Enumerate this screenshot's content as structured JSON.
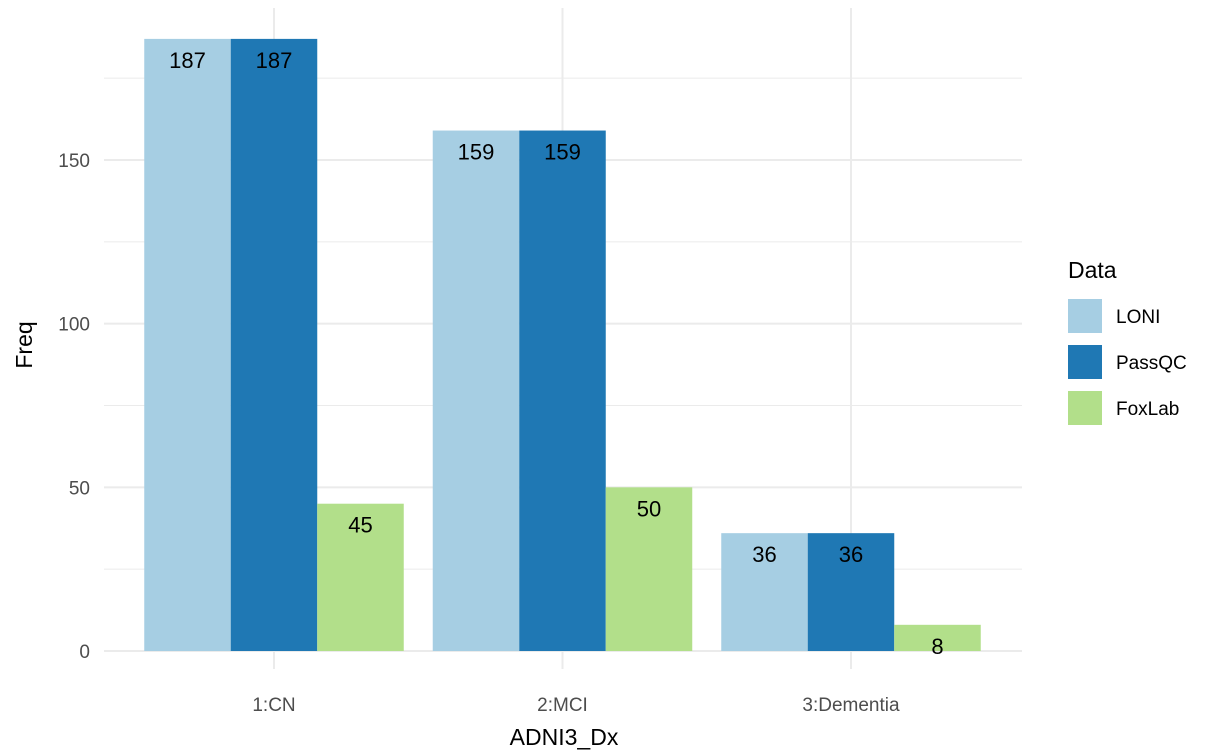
{
  "chart_data": {
    "type": "bar",
    "categories": [
      "1:CN",
      "2:MCI",
      "3:Dementia"
    ],
    "series": [
      {
        "name": "LONI",
        "values": [
          187,
          159,
          36
        ],
        "color": "#a6cee3"
      },
      {
        "name": "PassQC",
        "values": [
          187,
          159,
          36
        ],
        "color": "#1f78b4"
      },
      {
        "name": "FoxLab",
        "values": [
          45,
          50,
          8
        ],
        "color": "#b2df8a"
      }
    ],
    "xlabel": "ADNI3_Dx",
    "ylabel": "Freq",
    "ylim": [
      0,
      196
    ],
    "yticks": [
      0,
      50,
      100,
      150
    ],
    "y_minor_ticks": [
      25,
      75,
      125,
      175
    ],
    "grid": true,
    "legend": {
      "title": "Data",
      "position": "right"
    },
    "data_labels": true
  }
}
